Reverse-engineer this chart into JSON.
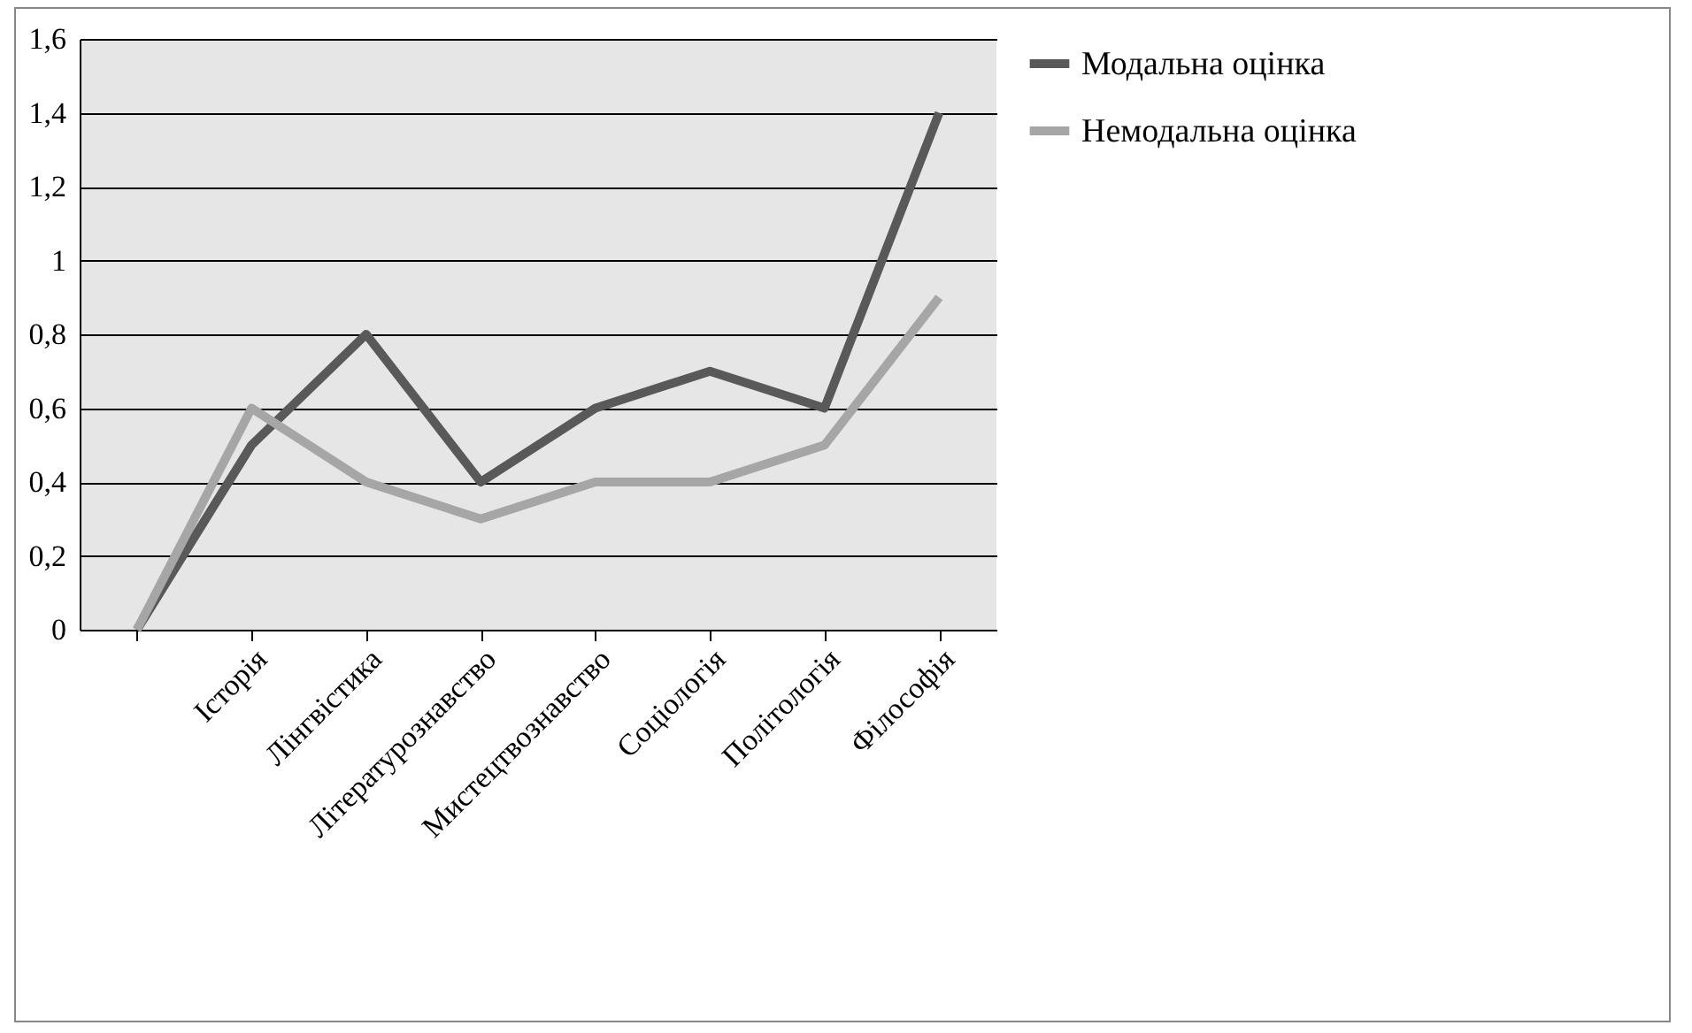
{
  "chart_data": {
    "type": "line",
    "categories": [
      null,
      "Історія",
      "Лінгвістика",
      "Літературознавство",
      "Мистецтвознавство",
      "Соціологія",
      "Політологія",
      "Філософія"
    ],
    "series": [
      {
        "name": "Модальна оцінка",
        "color": "#595959",
        "values": [
          0,
          0.5,
          0.8,
          0.4,
          0.6,
          0.7,
          0.6,
          1.4
        ]
      },
      {
        "name": "Немодальна оцінка",
        "color": "#a6a6a6",
        "values": [
          0,
          0.6,
          0.4,
          0.3,
          0.4,
          0.4,
          0.5,
          0.9
        ]
      }
    ],
    "ylim": [
      0,
      1.6
    ],
    "yticks": [
      0,
      {
        "value": 0.2,
        "label": "0,2"
      },
      {
        "value": 0.4,
        "label": "0,4"
      },
      {
        "value": 0.6,
        "label": "0,6"
      },
      {
        "value": 0.8,
        "label": "0,8"
      },
      1,
      {
        "value": 1.2,
        "label": "1,2"
      },
      {
        "value": 1.4,
        "label": "1,4"
      },
      {
        "value": 1.6,
        "label": "1,6"
      }
    ],
    "grid": "y",
    "legend": "right",
    "marker": "none",
    "line_style": "solid"
  }
}
